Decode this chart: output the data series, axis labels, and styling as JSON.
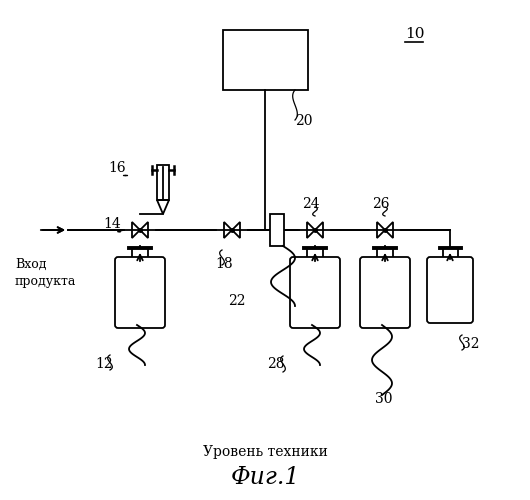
{
  "title": "Фиг.1",
  "subtitle": "Уровень техники",
  "label_10": "10",
  "label_12": "12",
  "label_14": "14",
  "label_16": "16",
  "label_18": "18",
  "label_20": "20",
  "label_22": "22",
  "label_24": "24",
  "label_26": "26",
  "label_28": "28",
  "label_30": "30",
  "label_32": "32",
  "product_entry": "Вход\nпродукта",
  "bg_color": "#ffffff",
  "line_color": "#000000",
  "figsize": [
    5.3,
    5.0
  ],
  "dpi": 100
}
